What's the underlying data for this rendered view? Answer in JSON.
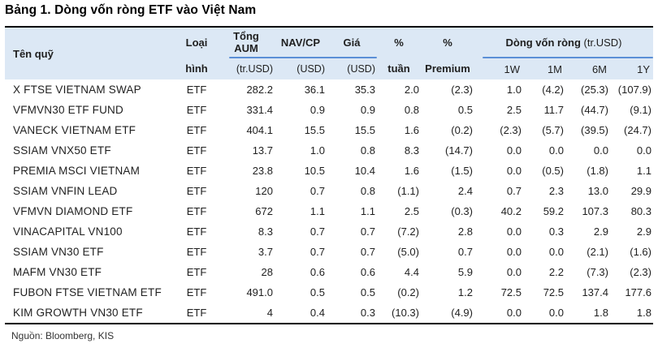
{
  "title": "Bảng 1. Dòng vốn ròng ETF vào Việt Nam",
  "source": "Nguồn: Bloomberg, KIS",
  "colors": {
    "header_bg": "#dce8f5",
    "accent_line": "#5b8fd6",
    "border": "#000000"
  },
  "table": {
    "columns": {
      "fund": "Tên quỹ",
      "type_line1": "Loại",
      "type_line2": "hình",
      "aum_line1": "Tổng",
      "aum_line2": "AUM",
      "aum_unit": "(tr.USD)",
      "nav": "NAV/CP",
      "nav_unit": "(USD)",
      "price": "Giá",
      "price_unit": "(USD)",
      "week_line1": "%",
      "week_line2": "tuần",
      "premium_line1": "%",
      "premium_line2": "Premium",
      "flows_group": "Dòng vốn ròng",
      "flows_group_unit": "(tr.USD)",
      "flow_1w": "1W",
      "flow_1m": "1M",
      "flow_6m": "6M",
      "flow_1y": "1Y"
    },
    "rows": [
      {
        "fund": "X FTSE VIETNAM SWAP",
        "type": "ETF",
        "aum": "282.2",
        "nav": "36.1",
        "price": "35.3",
        "week": "2.0",
        "premium": "(2.3)",
        "w1": "1.0",
        "m1": "(4.2)",
        "m6": "(25.3)",
        "y1": "(107.9)"
      },
      {
        "fund": "VFMVN30 ETF FUND",
        "type": "ETF",
        "aum": "331.4",
        "nav": "0.9",
        "price": "0.9",
        "week": "0.8",
        "premium": "0.5",
        "w1": "2.5",
        "m1": "11.7",
        "m6": "(44.7)",
        "y1": "(9.1)"
      },
      {
        "fund": "VANECK VIETNAM ETF",
        "type": "ETF",
        "aum": "404.1",
        "nav": "15.5",
        "price": "15.5",
        "week": "1.6",
        "premium": "(0.2)",
        "w1": "(2.3)",
        "m1": "(5.7)",
        "m6": "(39.5)",
        "y1": "(24.7)"
      },
      {
        "fund": "SSIAM VNX50 ETF",
        "type": "ETF",
        "aum": "13.7",
        "nav": "1.0",
        "price": "0.8",
        "week": "8.3",
        "premium": "(14.7)",
        "w1": "0.0",
        "m1": "0.0",
        "m6": "0.0",
        "y1": "0.0"
      },
      {
        "fund": "PREMIA MSCI VIETNAM",
        "type": "ETF",
        "aum": "23.8",
        "nav": "10.5",
        "price": "10.4",
        "week": "1.6",
        "premium": "(1.5)",
        "w1": "0.0",
        "m1": "(0.5)",
        "m6": "(1.8)",
        "y1": "1.1"
      },
      {
        "fund": "SSIAM VNFIN LEAD",
        "type": "ETF",
        "aum": "120",
        "nav": "0.7",
        "price": "0.8",
        "week": "(1.1)",
        "premium": "2.4",
        "w1": "0.7",
        "m1": "2.3",
        "m6": "13.0",
        "y1": "29.9"
      },
      {
        "fund": "VFMVN DIAMOND ETF",
        "type": "ETF",
        "aum": "672",
        "nav": "1.1",
        "price": "1.1",
        "week": "2.5",
        "premium": "(0.3)",
        "w1": "40.2",
        "m1": "59.2",
        "m6": "107.3",
        "y1": "80.3"
      },
      {
        "fund": "VINACAPITAL VN100",
        "type": "ETF",
        "aum": "8.3",
        "nav": "0.7",
        "price": "0.7",
        "week": "(7.2)",
        "premium": "2.8",
        "w1": "0.0",
        "m1": "0.3",
        "m6": "2.9",
        "y1": "2.9"
      },
      {
        "fund": "SSIAM VN30 ETF",
        "type": "ETF",
        "aum": "3.7",
        "nav": "0.7",
        "price": "0.7",
        "week": "(5.0)",
        "premium": "0.7",
        "w1": "0.0",
        "m1": "0.0",
        "m6": "(2.1)",
        "y1": "(1.6)"
      },
      {
        "fund": "MAFM VN30 ETF",
        "type": "ETF",
        "aum": "28",
        "nav": "0.6",
        "price": "0.6",
        "week": "4.4",
        "premium": "5.9",
        "w1": "0.0",
        "m1": "2.2",
        "m6": "(7.3)",
        "y1": "(2.3)"
      },
      {
        "fund": "FUBON FTSE VIETNAM ETF",
        "type": "ETF",
        "aum": "491.0",
        "nav": "0.5",
        "price": "0.5",
        "week": "(0.2)",
        "premium": "1.2",
        "w1": "72.5",
        "m1": "72.5",
        "m6": "137.4",
        "y1": "177.6"
      },
      {
        "fund": "KIM GROWTH VN30 ETF",
        "type": "ETF",
        "aum": "4",
        "nav": "0.4",
        "price": "0.3",
        "week": "(10.3)",
        "premium": "(4.9)",
        "w1": "0.0",
        "m1": "0.0",
        "m6": "1.8",
        "y1": "1.8"
      }
    ]
  }
}
